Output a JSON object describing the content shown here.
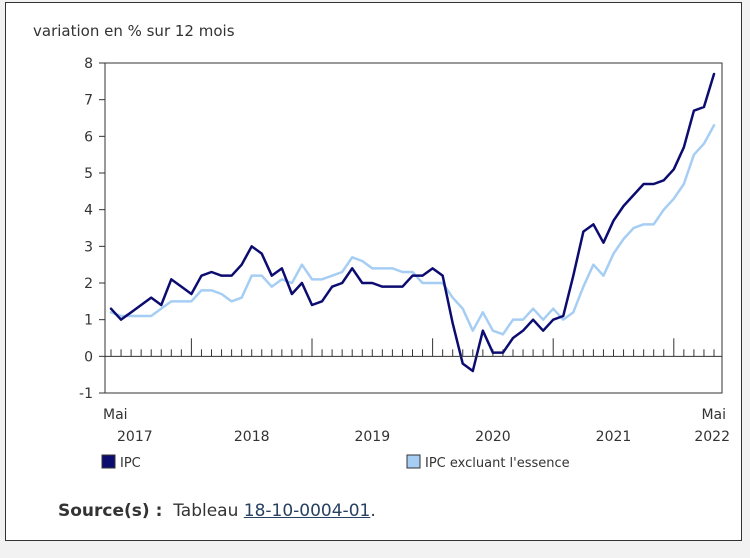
{
  "chart_data": {
    "type": "line",
    "ylabel": "variation en % sur 12 mois",
    "ylim": [
      -1,
      8
    ],
    "yticks": [
      -1,
      0,
      1,
      2,
      3,
      4,
      5,
      6,
      7,
      8
    ],
    "x_start": "Mai 2017",
    "x_end": "Mai 2022",
    "x_axis_labels": [
      {
        "month": "Mai",
        "year": "2017"
      },
      {
        "year": "2018"
      },
      {
        "year": "2019"
      },
      {
        "year": "2020"
      },
      {
        "year": "2021"
      },
      {
        "month": "Mai",
        "year": "2022"
      }
    ],
    "legend_placement": "bottom",
    "series": [
      {
        "name": "IPC",
        "color": "#0c0c70",
        "values": [
          1.3,
          1.0,
          1.2,
          1.4,
          1.6,
          1.4,
          2.1,
          1.9,
          1.7,
          2.2,
          2.3,
          2.2,
          2.2,
          2.5,
          3.0,
          2.8,
          2.2,
          2.4,
          1.7,
          2.0,
          1.4,
          1.5,
          1.9,
          2.0,
          2.4,
          2.0,
          2.0,
          1.9,
          1.9,
          1.9,
          2.2,
          2.2,
          2.4,
          2.2,
          0.9,
          -0.2,
          -0.4,
          0.7,
          0.1,
          0.1,
          0.5,
          0.7,
          1.0,
          0.7,
          1.0,
          1.1,
          2.2,
          3.4,
          3.6,
          3.1,
          3.7,
          4.1,
          4.4,
          4.7,
          4.7,
          4.8,
          5.1,
          5.7,
          6.7,
          6.8,
          7.7
        ]
      },
      {
        "name": "IPC excluant l'essence",
        "color": "#a6cef4",
        "values": [
          1.2,
          1.1,
          1.1,
          1.1,
          1.1,
          1.3,
          1.5,
          1.5,
          1.5,
          1.8,
          1.8,
          1.7,
          1.5,
          1.6,
          2.2,
          2.2,
          1.9,
          2.1,
          2.0,
          2.5,
          2.1,
          2.1,
          2.2,
          2.3,
          2.7,
          2.6,
          2.4,
          2.4,
          2.4,
          2.3,
          2.3,
          2.0,
          2.0,
          2.0,
          1.6,
          1.3,
          0.7,
          1.2,
          0.7,
          0.6,
          1.0,
          1.0,
          1.3,
          1.0,
          1.3,
          1.0,
          1.2,
          1.9,
          2.5,
          2.2,
          2.8,
          3.2,
          3.5,
          3.6,
          3.6,
          4.0,
          4.3,
          4.7,
          5.5,
          5.8,
          6.3
        ]
      }
    ]
  },
  "source": {
    "label": "Source(s) :",
    "prefix": "Tableau",
    "link_text": "18-10-0004-01",
    "suffix": "."
  }
}
